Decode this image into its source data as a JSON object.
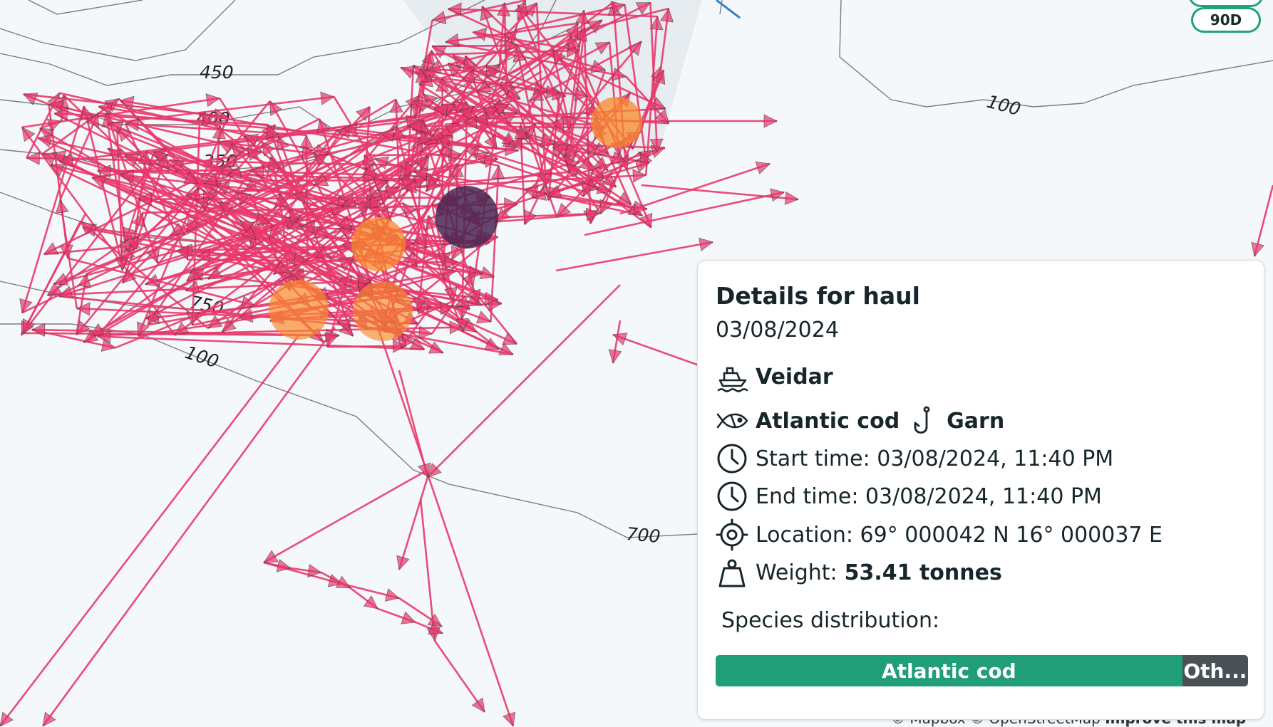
{
  "map": {
    "contour_labels": [
      "450",
      "400",
      "350",
      "750",
      "100",
      "700",
      "100"
    ],
    "time_filter_badge": "90D",
    "attribution": {
      "mapbox": "© Mapbox",
      "osm": "© OpenStreetMap",
      "improve": "Improve this map"
    },
    "colors": {
      "track": "#e8386c",
      "haul_marker": "#f98a2c",
      "selected_haul": "#4a2752",
      "contour": "#777777",
      "accent": "#1f9e77"
    }
  },
  "haul_details": {
    "title": "Details for haul",
    "date": "03/08/2024",
    "vessel": "Veidar",
    "species": "Atlantic cod",
    "gear": "Garn",
    "start_time": "Start time: 03/08/2024, 11:40 PM",
    "end_time": "End time: 03/08/2024, 11:40 PM",
    "location": "Location: 69° 000042 N 16° 000037 E",
    "weight_label": "Weight:",
    "weight_value": "53.41 tonnes",
    "species_distribution_label": "Species distribution:",
    "distribution": [
      {
        "name": "Atlantic cod",
        "display": "Atlantic cod",
        "fraction": 0.78,
        "color": "#1f9e77"
      },
      {
        "name": "Others",
        "display": "Oth...",
        "fraction": 0.11,
        "color": "#4a5257"
      }
    ],
    "icons": {
      "vessel": "ship-icon",
      "species": "fish-icon",
      "gear": "hook-icon",
      "start": "clock-icon",
      "end": "clock-icon",
      "location": "crosshair-icon",
      "weight": "weight-icon"
    }
  }
}
